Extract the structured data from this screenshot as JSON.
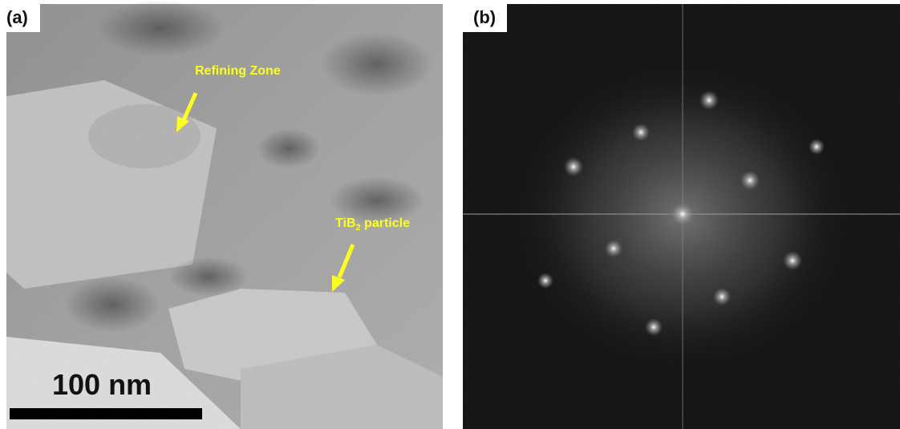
{
  "panel_a": {
    "label": "(a)",
    "annotations": [
      "Refining Zone",
      {
        "main": "TiB",
        "subscript": "2",
        "rest": " particle"
      }
    ],
    "scale_bar": "100 nm"
  },
  "panel_b": {
    "label": "(b)"
  }
}
